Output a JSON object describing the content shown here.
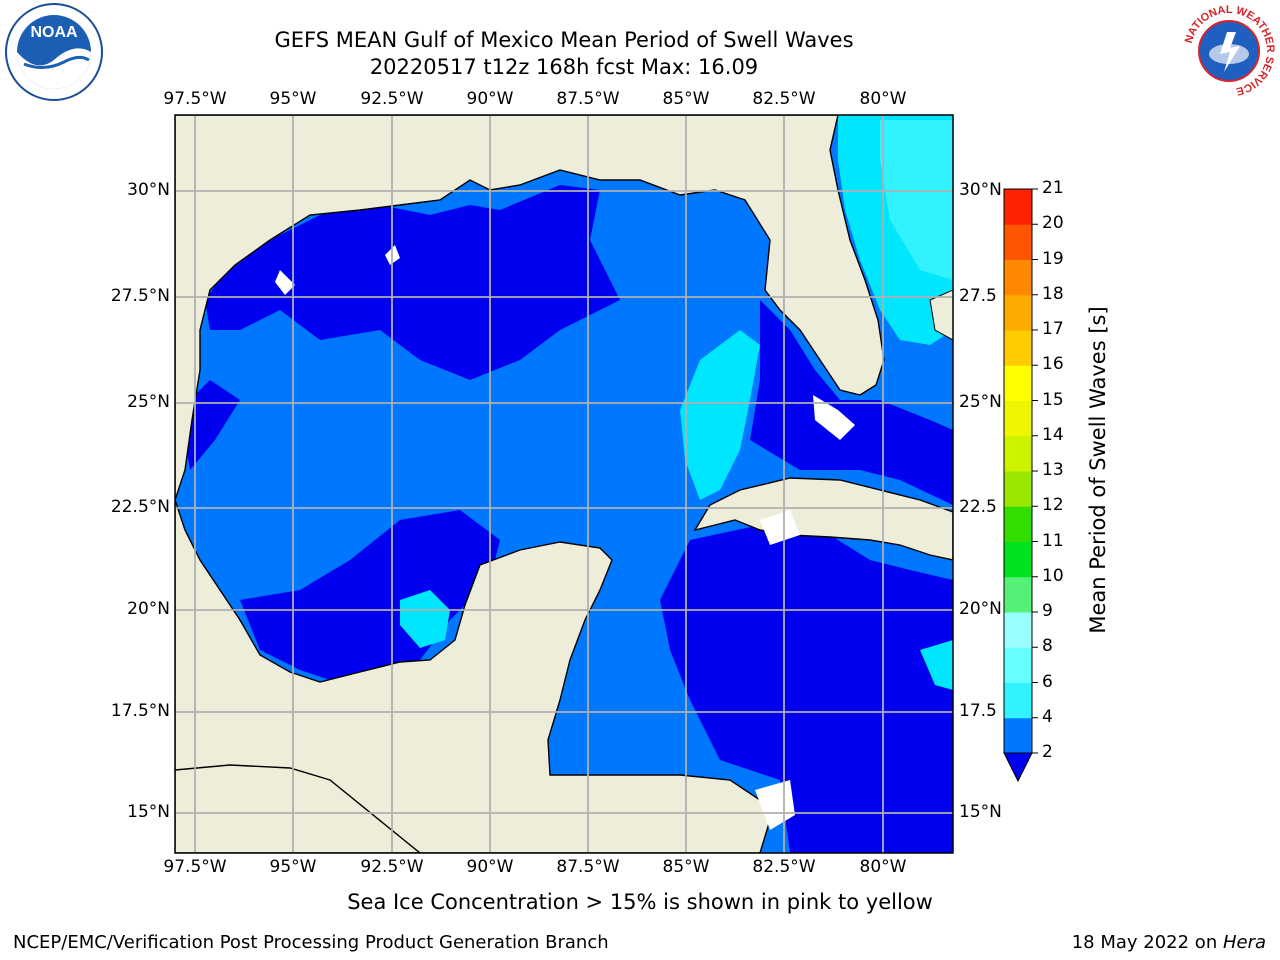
{
  "title_line1": "GEFS MEAN Gulf of Mexico Mean Period of Swell Waves",
  "title_line2": "20220517 t12z 168h fcst   Max: 16.09",
  "map": {
    "lon_labels": [
      "97.5°W",
      "95°W",
      "92.5°W",
      "90°W",
      "87.5°W",
      "85°W",
      "82.5°W",
      "80°W"
    ],
    "lat_labels": [
      "30°N",
      "27.5°N",
      "25°N",
      "22.5°N",
      "20°N",
      "17.5°N",
      "15°N"
    ],
    "lat_labels_right": [
      "30°N",
      "27.5",
      "25°N",
      "22.5",
      "20°N",
      "17.5",
      "15°N"
    ],
    "land_color": "#eeedda",
    "grid_color": "#b0b0b0"
  },
  "colorbar": {
    "title": "Mean Period of Swell Waves [s]",
    "ticks": [
      "2",
      "4",
      "6",
      "8",
      "9",
      "10",
      "11",
      "12",
      "13",
      "14",
      "15",
      "16",
      "17",
      "18",
      "19",
      "20",
      "21"
    ],
    "colors": [
      "#0077ff",
      "#00e6ff",
      "#33f2ff",
      "#66ffff",
      "#99ffff",
      "#55f077",
      "#00e21d",
      "#33dd00",
      "#99e600",
      "#ccf200",
      "#eef500",
      "#ffff00",
      "#ffcc00",
      "#ffaa00",
      "#ff8800",
      "#ff5500",
      "#ff2200",
      "#ff0000"
    ],
    "extend_color": "#0000f0"
  },
  "caption": "Sea Ice Concentration > 15% is shown in pink to yellow",
  "footer_left": "NCEP/EMC/Verification Post Processing Product Generation Branch",
  "footer_right_prefix": "18 May 2022 on ",
  "footer_right_host": "Hera",
  "logos": {
    "left_text": "NOAA",
    "right_ring_text": "NATIONAL WEATHER SERVICE"
  }
}
